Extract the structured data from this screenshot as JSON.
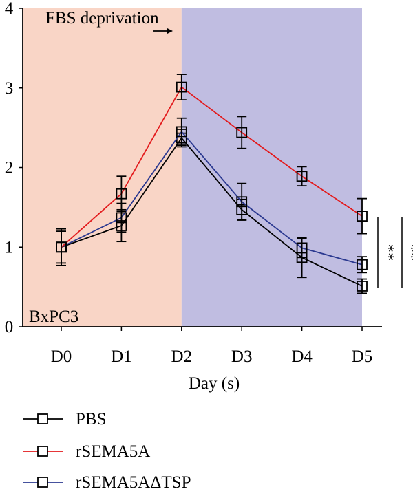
{
  "chart_data": {
    "type": "line",
    "title": "",
    "xlabel": "Day (s)",
    "ylabel": "",
    "categories": [
      "D0",
      "D1",
      "D2",
      "D3",
      "D4",
      "D5"
    ],
    "ylim": [
      0,
      4
    ],
    "yticks": [
      "0",
      "1",
      "2",
      "3",
      "4"
    ],
    "grid": false,
    "legend_position": "bottom-left",
    "regions": [
      {
        "label": "",
        "from": "D0",
        "to": "D2",
        "color": "#f9d5c6"
      },
      {
        "label": "",
        "from": "D2",
        "to": "D5",
        "color": "#c0bde1"
      }
    ],
    "annotations": {
      "fbs": "FBS deprivation",
      "cell_line": "BxPC3",
      "sig1": "**",
      "sig2": "**"
    },
    "series": [
      {
        "name": "PBS",
        "color": "#000000",
        "values": [
          1.0,
          1.27,
          2.37,
          1.47,
          0.87,
          0.51
        ],
        "errors": [
          0.23,
          0.2,
          0.11,
          0.13,
          0.25,
          0.09
        ]
      },
      {
        "name": "rSEMA5A",
        "color": "#e31a1c",
        "values": [
          1.0,
          1.67,
          3.01,
          2.44,
          1.89,
          1.39
        ],
        "errors": [
          0.23,
          0.22,
          0.16,
          0.2,
          0.12,
          0.22
        ]
      },
      {
        "name": "rSEMA5AΔTSP",
        "color": "#2b3990",
        "values": [
          1.0,
          1.37,
          2.45,
          1.57,
          0.99,
          0.78
        ],
        "errors": [
          0.2,
          0.18,
          0.17,
          0.23,
          0.12,
          0.1
        ]
      }
    ]
  }
}
